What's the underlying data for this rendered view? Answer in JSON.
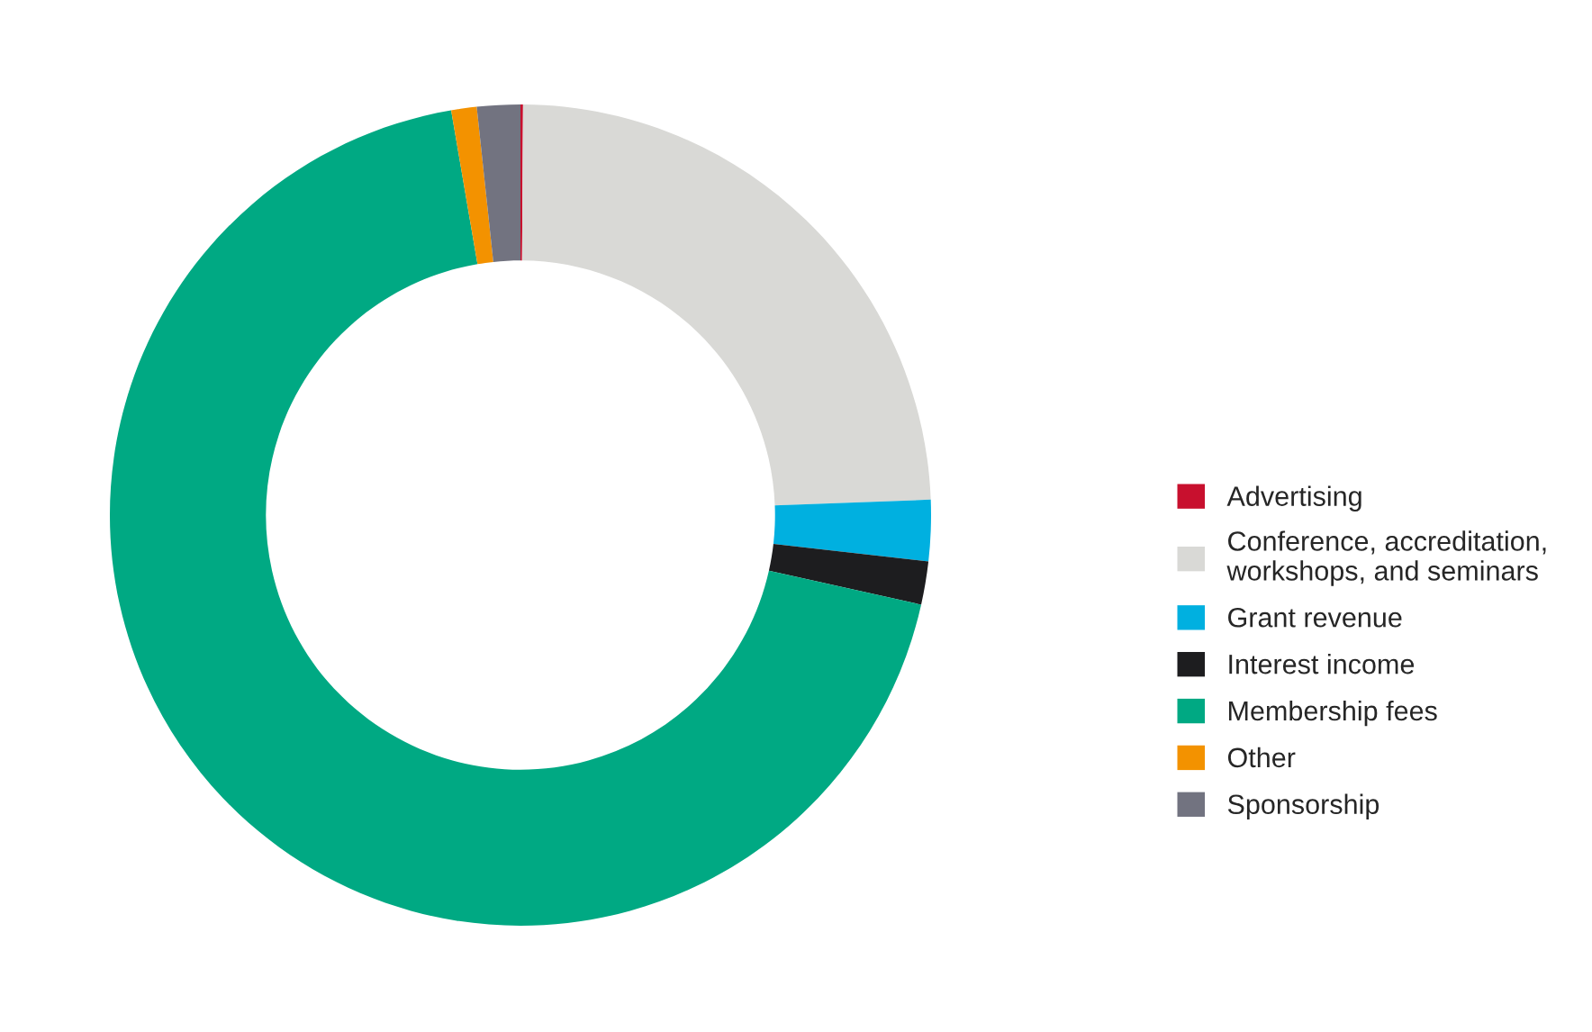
{
  "chart_data": {
    "type": "donut",
    "categories": [
      "Advertising",
      "Conference, accreditation,\nworkshops, and seminars",
      "Grant revenue",
      "Interest income",
      "Membership fees",
      "Other",
      "Sponsorship"
    ],
    "values": [
      0.1,
      24.3,
      2.4,
      1.7,
      68.8,
      1.0,
      1.7
    ],
    "colors": [
      "#c8102e",
      "#d9d9d6",
      "#00b0e0",
      "#1d1d1f",
      "#00a983",
      "#f39200",
      "#727380"
    ],
    "legend": "right"
  }
}
